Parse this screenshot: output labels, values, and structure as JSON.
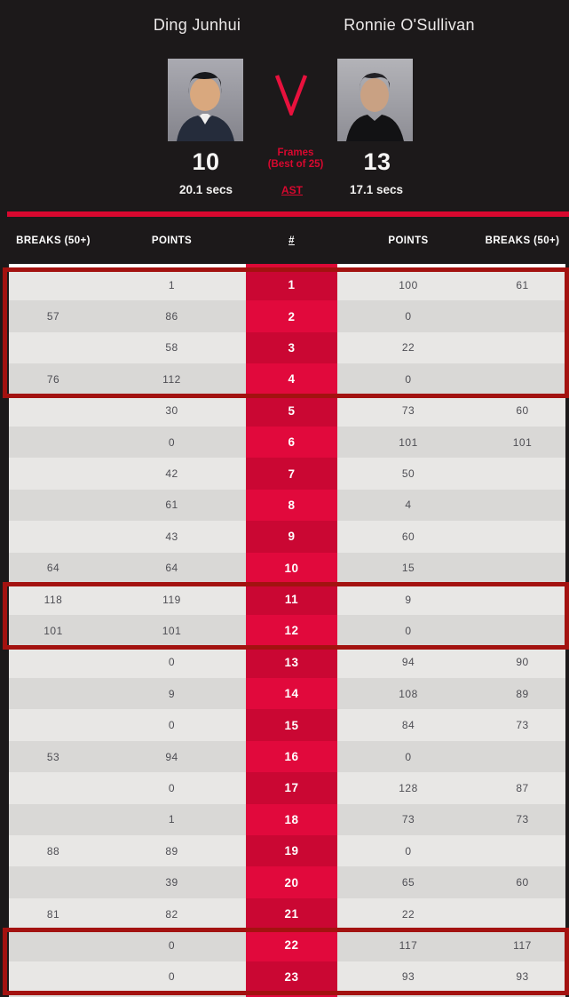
{
  "header": {
    "player_left": {
      "name": "Ding Junhui",
      "score": "10",
      "shot_time": "20.1 secs"
    },
    "player_right": {
      "name": "Ronnie O'Sullivan",
      "score": "13",
      "shot_time": "17.1 secs"
    },
    "versus": "V",
    "frames_label_line1": "Frames",
    "frames_label_line2": "(Best of 25)",
    "ast_label": "AST"
  },
  "table": {
    "columns": [
      "BREAKS (50+)",
      "POINTS",
      "#",
      "POINTS",
      "BREAKS (50+)"
    ],
    "rows": [
      {
        "breaks_l": "",
        "points_l": "1",
        "frame": "1",
        "points_r": "100",
        "breaks_r": "61"
      },
      {
        "breaks_l": "57",
        "points_l": "86",
        "frame": "2",
        "points_r": "0",
        "breaks_r": ""
      },
      {
        "breaks_l": "",
        "points_l": "58",
        "frame": "3",
        "points_r": "22",
        "breaks_r": ""
      },
      {
        "breaks_l": "76",
        "points_l": "112",
        "frame": "4",
        "points_r": "0",
        "breaks_r": ""
      },
      {
        "breaks_l": "",
        "points_l": "30",
        "frame": "5",
        "points_r": "73",
        "breaks_r": "60"
      },
      {
        "breaks_l": "",
        "points_l": "0",
        "frame": "6",
        "points_r": "101",
        "breaks_r": "101"
      },
      {
        "breaks_l": "",
        "points_l": "42",
        "frame": "7",
        "points_r": "50",
        "breaks_r": ""
      },
      {
        "breaks_l": "",
        "points_l": "61",
        "frame": "8",
        "points_r": "4",
        "breaks_r": ""
      },
      {
        "breaks_l": "",
        "points_l": "43",
        "frame": "9",
        "points_r": "60",
        "breaks_r": ""
      },
      {
        "breaks_l": "64",
        "points_l": "64",
        "frame": "10",
        "points_r": "15",
        "breaks_r": ""
      },
      {
        "breaks_l": "118",
        "points_l": "119",
        "frame": "11",
        "points_r": "9",
        "breaks_r": ""
      },
      {
        "breaks_l": "101",
        "points_l": "101",
        "frame": "12",
        "points_r": "0",
        "breaks_r": ""
      },
      {
        "breaks_l": "",
        "points_l": "0",
        "frame": "13",
        "points_r": "94",
        "breaks_r": "90"
      },
      {
        "breaks_l": "",
        "points_l": "9",
        "frame": "14",
        "points_r": "108",
        "breaks_r": "89"
      },
      {
        "breaks_l": "",
        "points_l": "0",
        "frame": "15",
        "points_r": "84",
        "breaks_r": "73"
      },
      {
        "breaks_l": "53",
        "points_l": "94",
        "frame": "16",
        "points_r": "0",
        "breaks_r": ""
      },
      {
        "breaks_l": "",
        "points_l": "0",
        "frame": "17",
        "points_r": "128",
        "breaks_r": "87"
      },
      {
        "breaks_l": "",
        "points_l": "1",
        "frame": "18",
        "points_r": "73",
        "breaks_r": "73"
      },
      {
        "breaks_l": "88",
        "points_l": "89",
        "frame": "19",
        "points_r": "0",
        "breaks_r": ""
      },
      {
        "breaks_l": "",
        "points_l": "39",
        "frame": "20",
        "points_r": "65",
        "breaks_r": "60"
      },
      {
        "breaks_l": "81",
        "points_l": "82",
        "frame": "21",
        "points_r": "22",
        "breaks_r": ""
      },
      {
        "breaks_l": "",
        "points_l": "0",
        "frame": "22",
        "points_r": "117",
        "breaks_r": "117"
      },
      {
        "breaks_l": "",
        "points_l": "0",
        "frame": "23",
        "points_r": "93",
        "breaks_r": "93"
      }
    ]
  },
  "highlights": [
    {
      "from_frame": 1,
      "to_frame": 4
    },
    {
      "from_frame": 11,
      "to_frame": 12
    },
    {
      "from_frame": 22,
      "to_frame": 23
    }
  ],
  "colors": {
    "accent_red": "#d8082f",
    "frame_col_red_bright": "#e1093c",
    "frame_col_red_dark": "#ca0733",
    "highlight_border_red": "#a31210",
    "row_light": "#e8e7e5",
    "row_dark": "#d9d8d6",
    "background": "#1c191a"
  }
}
